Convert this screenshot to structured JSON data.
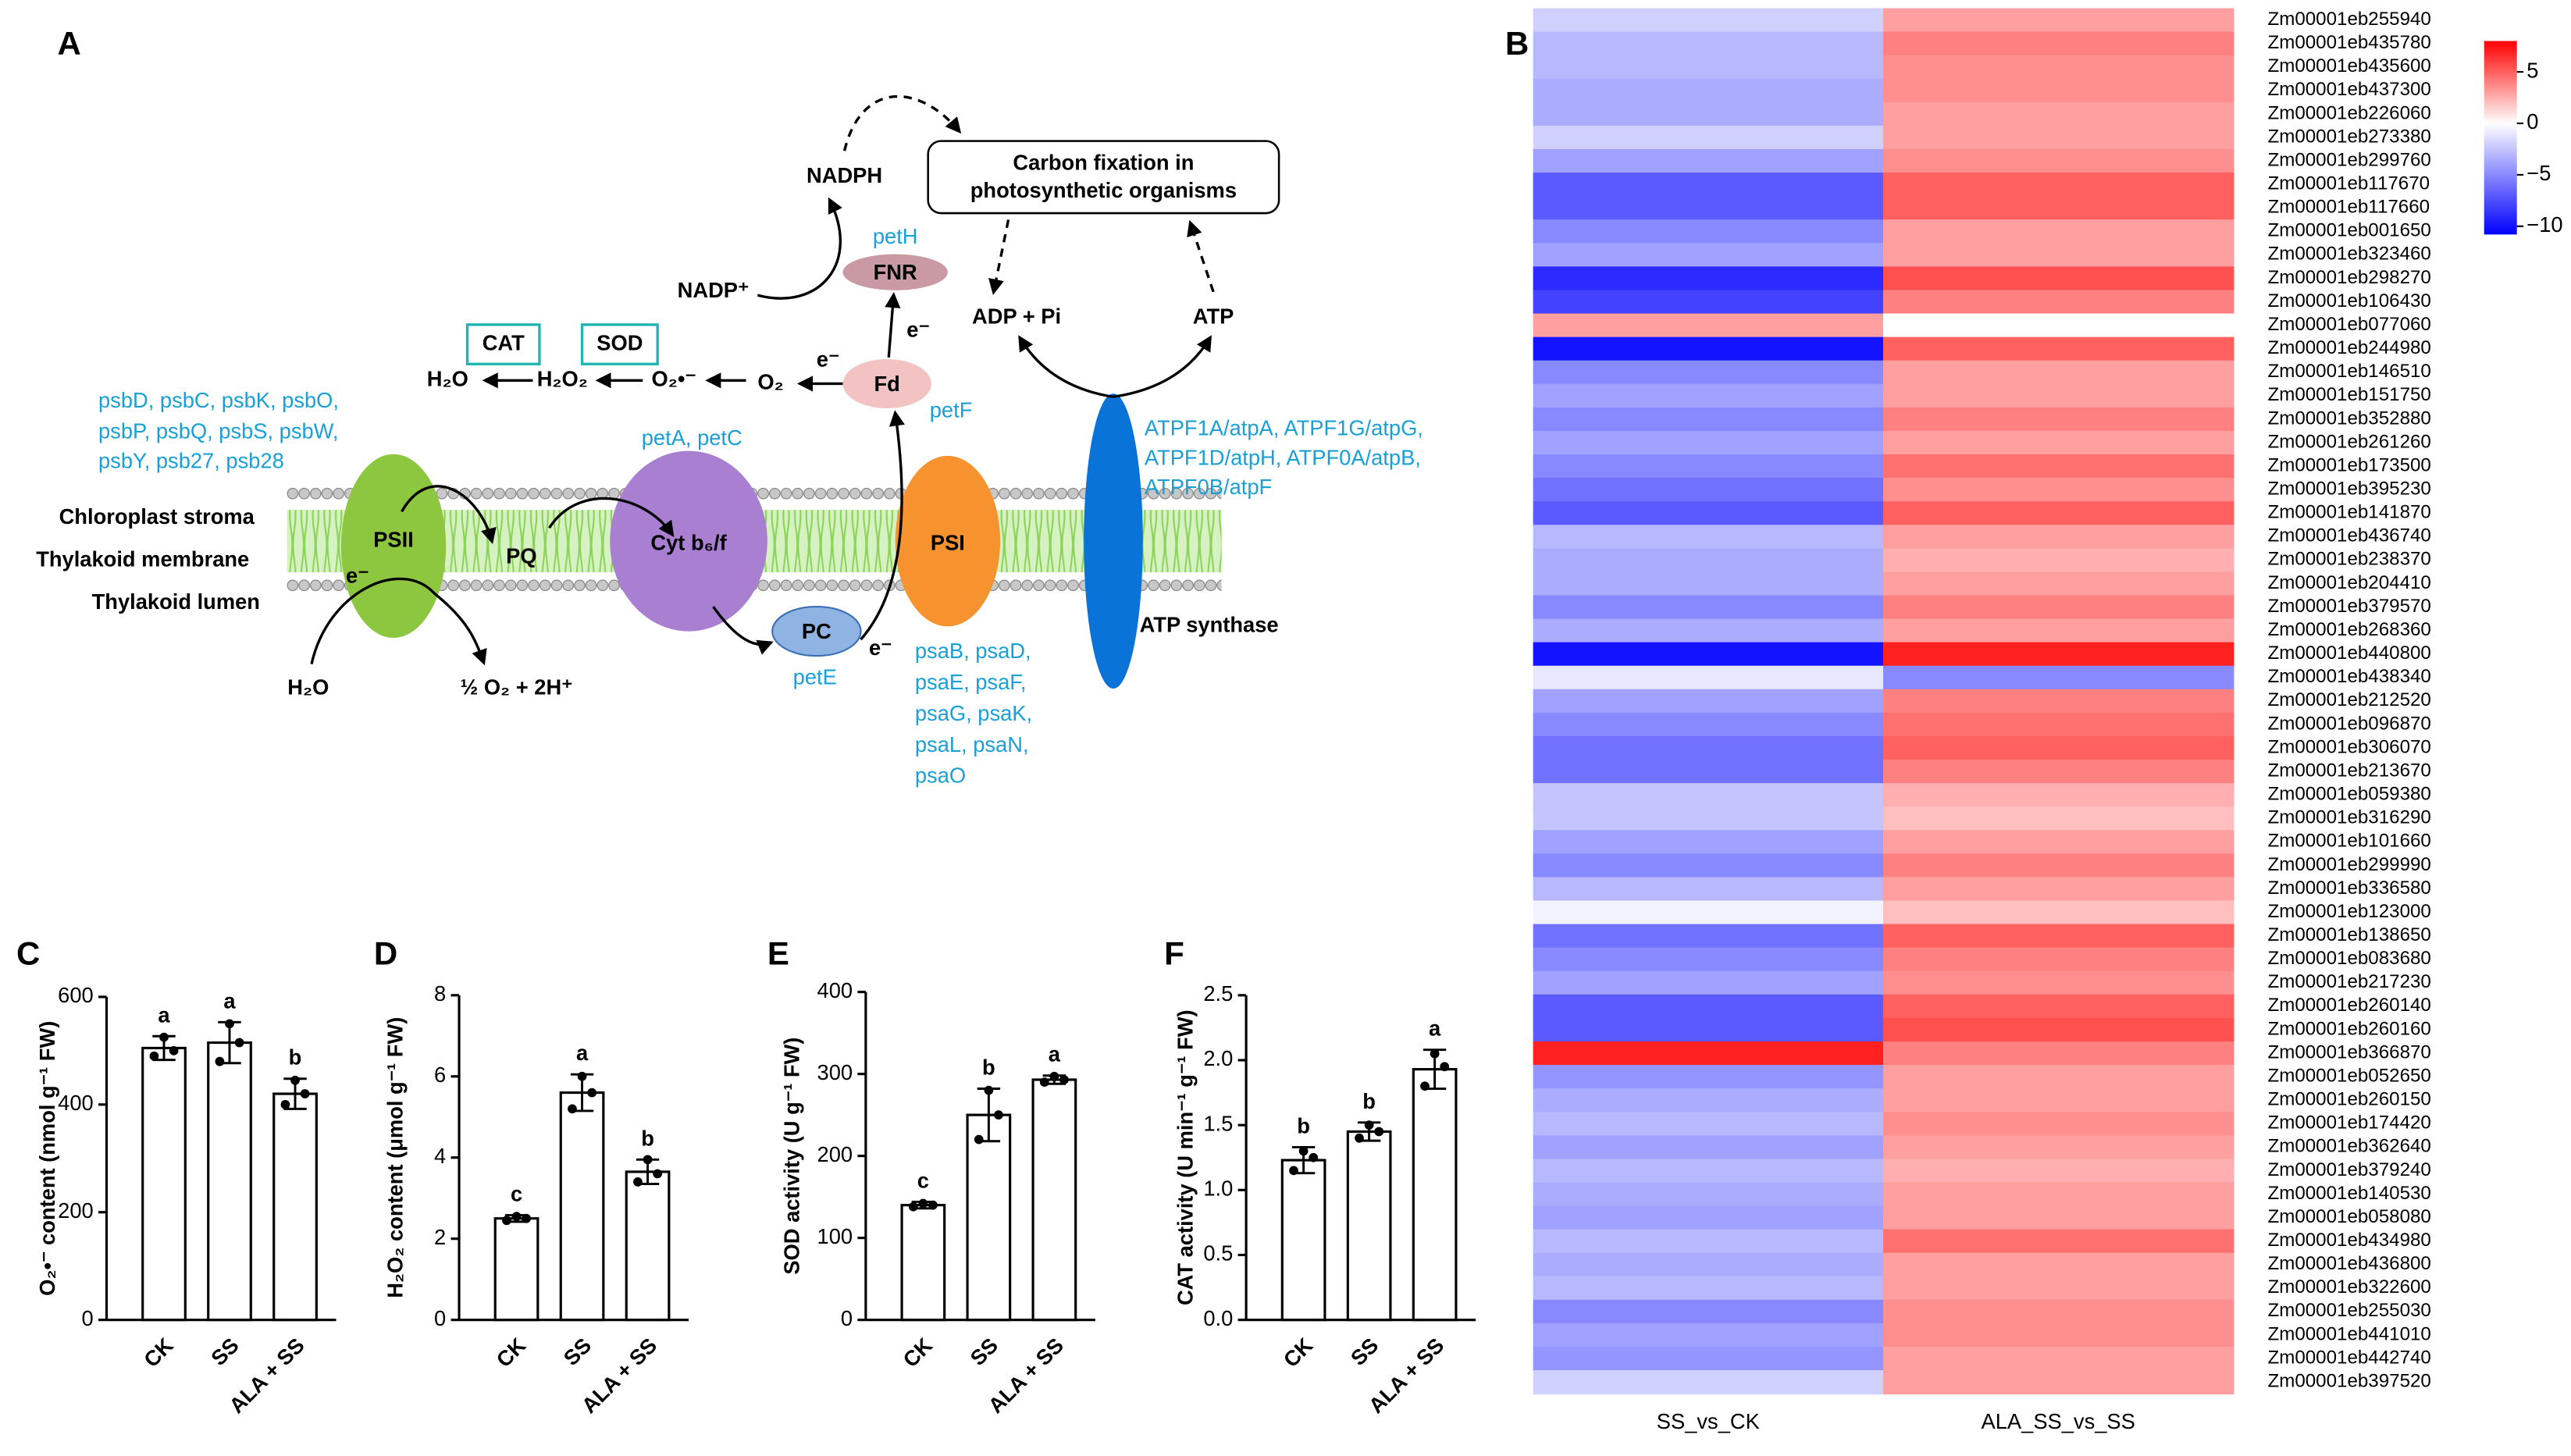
{
  "diagram": {
    "panel": "A",
    "carbon_fixation": [
      "Carbon fixation in",
      "photosynthetic organisms"
    ],
    "nadph": "NADPH",
    "nadp": "NADP⁺",
    "peth": "petH",
    "fnr": "FNR",
    "adp": "ADP + Pi",
    "atp": "ATP",
    "cat": "CAT",
    "sod": "SOD",
    "h2o_top": "H₂O",
    "h2o2": "H₂O₂",
    "superoxide": "O₂•⁻",
    "o2": "O₂",
    "fd": "Fd",
    "petf": "petF",
    "electrons": [
      "e⁻",
      "e⁻",
      "e⁻",
      "e⁻"
    ],
    "psb_genes": [
      "psbD, psbC, psbK, psbO,",
      "psbP, psbQ, psbS, psbW,",
      "psbY, psb27, psb28"
    ],
    "peta": "petA, petC",
    "stroma": "Chloroplast stroma",
    "membrane": "Thylakoid membrane",
    "lumen": "Thylakoid lumen",
    "psii": "PSII",
    "pq": "PQ",
    "cyt": "Cyt b₆/f",
    "psi": "PSI",
    "pc": "PC",
    "pete": "petE",
    "atp_synthase": "ATP synthase",
    "atpf_genes": [
      "ATPF1A/atpA, ATPF1G/atpG,",
      "ATPF1D/atpH, ATPF0A/atpB,",
      "ATPF0B/atpF"
    ],
    "psa_genes": [
      "psaB, psaD,",
      "psaE, psaF,",
      "psaG, psaK,",
      "psaL, psaN,",
      "psaO"
    ],
    "h2o_bottom": "H₂O",
    "products": "½ O₂ + 2H⁺"
  },
  "chart_data": [
    {
      "type": "bar",
      "panel": "C",
      "ylabel": "O₂•⁻ content (nmol g⁻¹ FW)",
      "categories": [
        "CK",
        "SS",
        "ALA + SS"
      ],
      "values": [
        505,
        515,
        420
      ],
      "errors": [
        22,
        38,
        28
      ],
      "letters": [
        "a",
        "a",
        "b"
      ],
      "points": [
        [
          490,
          525,
          500
        ],
        [
          480,
          550,
          515
        ],
        [
          400,
          445,
          420
        ]
      ],
      "ylim": [
        0,
        600
      ],
      "yticks": [
        0,
        200,
        400,
        600
      ],
      "color": "#ffffff"
    },
    {
      "type": "bar",
      "panel": "D",
      "ylabel": "H₂O₂ content (μmol g⁻¹ FW)",
      "categories": [
        "CK",
        "SS",
        "ALA + SS"
      ],
      "values": [
        2.5,
        5.6,
        3.65
      ],
      "errors": [
        0.08,
        0.45,
        0.3
      ],
      "letters": [
        "c",
        "a",
        "b"
      ],
      "points": [
        [
          2.45,
          2.55,
          2.5
        ],
        [
          5.2,
          6.0,
          5.6
        ],
        [
          3.4,
          3.95,
          3.6
        ]
      ],
      "ylim": [
        0,
        8
      ],
      "yticks": [
        0,
        2,
        4,
        6,
        8
      ],
      "color": "#ffffff"
    },
    {
      "type": "bar",
      "panel": "E",
      "ylabel": "SOD activity (U g⁻¹ FW)",
      "categories": [
        "CK",
        "SS",
        "ALA + SS"
      ],
      "values": [
        140,
        250,
        293
      ],
      "errors": [
        4,
        32,
        5
      ],
      "letters": [
        "c",
        "b",
        "a"
      ],
      "points": [
        [
          138,
          142,
          140
        ],
        [
          220,
          280,
          250
        ],
        [
          290,
          297,
          293
        ]
      ],
      "ylim": [
        0,
        400
      ],
      "yticks": [
        0,
        100,
        200,
        300,
        400
      ],
      "color": "#ffffff"
    },
    {
      "type": "bar",
      "panel": "F",
      "ylabel": "CAT activity (U min⁻¹ g⁻¹ FW)",
      "categories": [
        "CK",
        "SS",
        "ALA + SS"
      ],
      "values": [
        1.23,
        1.45,
        1.93
      ],
      "errors": [
        0.1,
        0.07,
        0.15
      ],
      "letters": [
        "b",
        "b",
        "a"
      ],
      "points": [
        [
          1.15,
          1.3,
          1.25
        ],
        [
          1.4,
          1.5,
          1.45
        ],
        [
          1.8,
          2.05,
          1.95
        ]
      ],
      "ylim": [
        0,
        2.5
      ],
      "yticks": [
        {
          "value": 0,
          "label": "0.0"
        },
        0.5,
        {
          "value": 1,
          "label": "1.0"
        },
        1.5,
        {
          "value": 2,
          "label": "2.0"
        },
        2.5
      ],
      "color": "#ffffff"
    },
    {
      "type": "heatmap",
      "panel": "B",
      "categories": [
        "Zm00001eb255940",
        "Zm00001eb435780",
        "Zm00001eb435600",
        "Zm00001eb437300",
        "Zm00001eb226060",
        "Zm00001eb273380",
        "Zm00001eb299760",
        "Zm00001eb117670",
        "Zm00001eb117660",
        "Zm00001eb001650",
        "Zm00001eb323460",
        "Zm00001eb298270",
        "Zm00001eb106430",
        "Zm00001eb077060",
        "Zm00001eb244980",
        "Zm00001eb146510",
        "Zm00001eb151750",
        "Zm00001eb352880",
        "Zm00001eb261260",
        "Zm00001eb173500",
        "Zm00001eb395230",
        "Zm00001eb141870",
        "Zm00001eb436740",
        "Zm00001eb238370",
        "Zm00001eb204410",
        "Zm00001eb379570",
        "Zm00001eb268360",
        "Zm00001eb440800",
        "Zm00001eb438340",
        "Zm00001eb212520",
        "Zm00001eb096870",
        "Zm00001eb306070",
        "Zm00001eb213670",
        "Zm00001eb059380",
        "Zm00001eb316290",
        "Zm00001eb101660",
        "Zm00001eb299990",
        "Zm00001eb336580",
        "Zm00001eb123000",
        "Zm00001eb138650",
        "Zm00001eb083680",
        "Zm00001eb217230",
        "Zm00001eb260140",
        "Zm00001eb260160",
        "Zm00001eb366870",
        "Zm00001eb052650",
        "Zm00001eb260150",
        "Zm00001eb174420",
        "Zm00001eb362640",
        "Zm00001eb379240",
        "Zm00001eb140530",
        "Zm00001eb058080",
        "Zm00001eb434980",
        "Zm00001eb436800",
        "Zm00001eb322600",
        "Zm00001eb255030",
        "Zm00001eb441010",
        "Zm00001eb442740",
        "Zm00001eb397520"
      ],
      "series": [
        {
          "name": "SS_vs_CK",
          "values": [
            -2,
            -3,
            -3,
            -3.5,
            -3.5,
            -2,
            -4,
            -7,
            -7,
            -5,
            -4,
            -9,
            -8,
            3,
            -10,
            -5,
            -4,
            -5,
            -4,
            -5,
            -6,
            -7,
            -3,
            -3.5,
            -3.5,
            -5,
            -3.5,
            -10,
            -1,
            -4,
            -5,
            -6,
            -6,
            -2.5,
            -2.5,
            -4,
            -5,
            -3,
            -0.5,
            -6,
            -5,
            -4,
            -7,
            -7,
            7,
            -4.5,
            -3.5,
            -3,
            -4,
            -3,
            -3.5,
            -4,
            -3,
            -3.5,
            -3,
            -5,
            -4,
            -4.5,
            -2
          ]
        },
        {
          "name": "ALA_SS_vs_SS",
          "values": [
            3,
            4,
            3.5,
            3.5,
            3,
            3,
            3.5,
            5,
            5,
            3,
            3,
            5.5,
            4,
            0,
            5,
            3,
            3,
            4,
            3,
            4.5,
            3.5,
            5,
            3,
            2.5,
            3,
            4,
            3,
            7,
            -5,
            4,
            4.5,
            5,
            4,
            2.5,
            2,
            3,
            4,
            3,
            2,
            5,
            4,
            3.5,
            5,
            5.5,
            4,
            3,
            3,
            3.5,
            3,
            2.5,
            3,
            3,
            4.5,
            3,
            3,
            3.5,
            3.5,
            3,
            3
          ]
        }
      ],
      "colors": {
        "low": "#0000ff",
        "mid": "#ffffff",
        "high": "#ff0000"
      },
      "clim": [
        -10.8,
        8
      ],
      "cticks": [
        5,
        0,
        {
          "value": -5,
          "label": "−5"
        },
        {
          "value": -10,
          "label": "−10"
        }
      ]
    }
  ]
}
